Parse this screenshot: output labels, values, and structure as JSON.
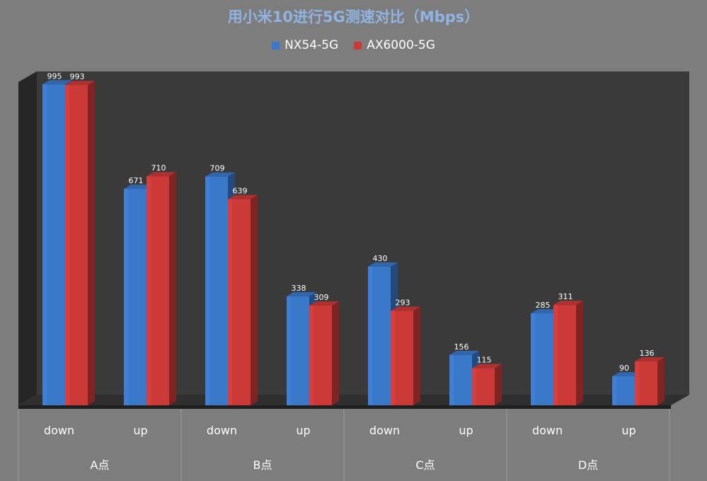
{
  "chart_data": {
    "type": "bar",
    "title": "用小米10进行5G测速对比（Mbps）",
    "categories": [
      "down",
      "up",
      "down",
      "up",
      "down",
      "up",
      "down",
      "up"
    ],
    "groups": [
      "A点",
      "B点",
      "C点",
      "D点"
    ],
    "series": [
      {
        "name": "NX54-5G",
        "values": [
          995,
          671,
          709,
          338,
          430,
          156,
          285,
          90
        ]
      },
      {
        "name": "AX6000-5G",
        "values": [
          993,
          710,
          639,
          309,
          293,
          115,
          311,
          136
        ]
      }
    ],
    "ylim": [
      0,
      1000
    ],
    "grid": false,
    "legend_position": "top",
    "colors": {
      "background": "#7d7d7d",
      "plot_wall": "#3a3a3a",
      "side_wall": "#262626",
      "floor": "#2f2f2f",
      "NX54-5G": "#3a78c9",
      "AX6000-5G": "#cc3a38",
      "title": "#8fb4e3",
      "label": "#ffffff",
      "axis_line": "#9a9a9a"
    }
  }
}
